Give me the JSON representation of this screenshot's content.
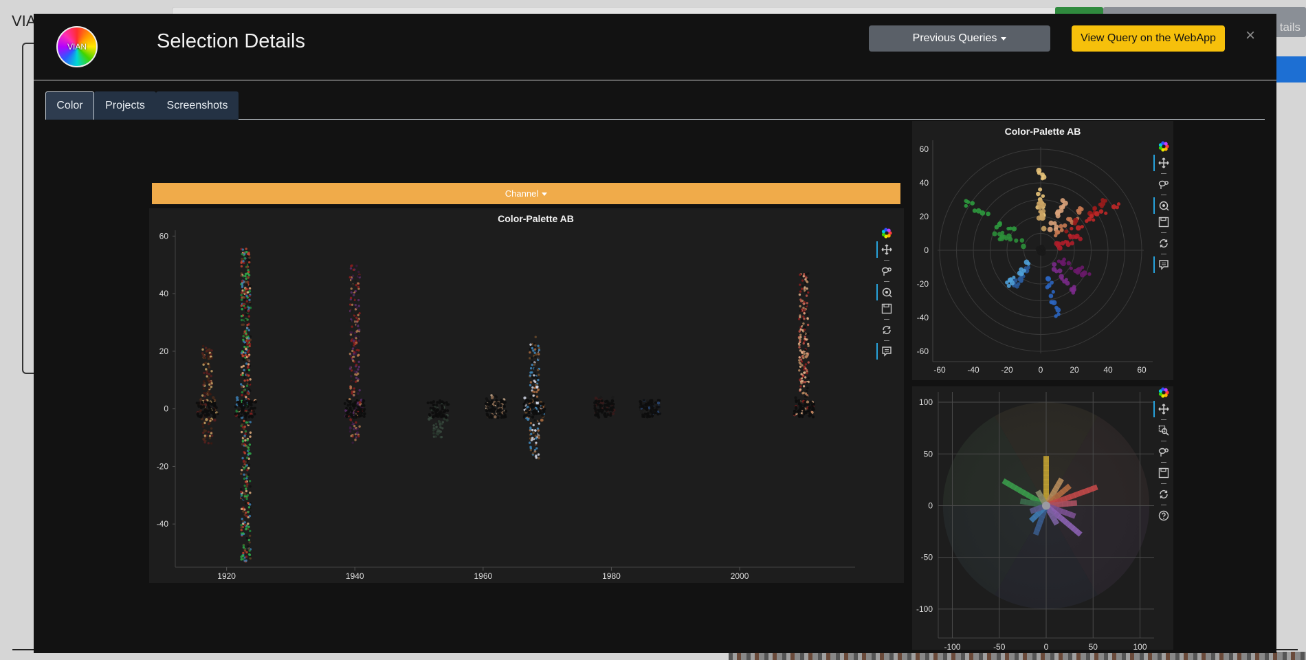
{
  "background": {
    "brand": "VIA",
    "header_button_tail": "tails"
  },
  "modal": {
    "title": "Selection Details",
    "logo_text": "VIAN",
    "buttons": {
      "previous_queries": "Previous Queries",
      "view_query": "View Query on the WebApp",
      "close": "×"
    },
    "tabs": [
      {
        "label": "Color",
        "active": true
      },
      {
        "label": "Projects",
        "active": false
      },
      {
        "label": "Screenshots",
        "active": false
      }
    ],
    "channel_label": "Channel"
  },
  "chart_data": [
    {
      "type": "scatter",
      "title": "Color-Palette AB",
      "x_ticks": [
        "1920",
        "1940",
        "1960",
        "1980",
        "2000"
      ],
      "y_ticks": [
        "60",
        "40",
        "20",
        "0",
        "-20",
        "-40"
      ],
      "xlim": [
        1912,
        2018
      ],
      "ylim": [
        -55,
        62
      ],
      "groups": [
        {
          "year": 1917,
          "min": -12,
          "max": 22,
          "colors": [
            "#5a1e1e",
            "#3e1a12",
            "#4a2a1a",
            "#c5a063"
          ]
        },
        {
          "year": 1923,
          "min": -53,
          "max": 56,
          "colors": [
            "#8b1d1d",
            "#c2452f",
            "#e6b080",
            "#3b7fb5",
            "#1f8a3a",
            "#2fae4a",
            "#5a3a22",
            "#111111"
          ]
        },
        {
          "year": 1940,
          "min": -12,
          "max": 50,
          "colors": [
            "#8b1d1d",
            "#5b2d6a",
            "#3a1a40",
            "#b07a50",
            "#1a1a1a"
          ]
        },
        {
          "year": 1953,
          "min": -10,
          "max": 2,
          "colors": [
            "#2a3a2f",
            "#3a4a3f"
          ]
        },
        {
          "year": 1962,
          "min": -3,
          "max": 5,
          "colors": [
            "#c9ab8e",
            "#8b6a50",
            "#111111"
          ]
        },
        {
          "year": 1968,
          "min": -18,
          "max": 25,
          "colors": [
            "#a86a40",
            "#d4d8e8",
            "#6b4a2a",
            "#111111",
            "#3f89c0"
          ]
        },
        {
          "year": 1979,
          "min": -2,
          "max": 4,
          "colors": [
            "#1a1a1a",
            "#3a1a1a"
          ]
        },
        {
          "year": 1986,
          "min": -2,
          "max": 3,
          "colors": [
            "#2a4a7a",
            "#1a1a1a"
          ]
        },
        {
          "year": 2010,
          "min": -2,
          "max": 47,
          "colors": [
            "#8b1d1d",
            "#c0574a",
            "#e6b28a",
            "#b98860",
            "#111111"
          ]
        }
      ],
      "x_values": [
        1917,
        1923,
        1940,
        1953,
        1962,
        1968,
        1979,
        1986,
        2010
      ]
    },
    {
      "type": "scatter",
      "title": "Color-Palette AB",
      "x_ticks": [
        "-60",
        "-40",
        "-20",
        "0",
        "20",
        "40",
        "60"
      ],
      "y_ticks": [
        "60",
        "40",
        "20",
        "0",
        "-20",
        "-40",
        "-60"
      ],
      "xlim": [
        -66,
        66
      ],
      "ylim": [
        -66,
        66
      ],
      "clusters": [
        {
          "a": -48,
          "b": 30,
          "color": "#2e9a3e"
        },
        {
          "a": -28,
          "b": 10,
          "color": "#2c8f3a"
        },
        {
          "a": 0,
          "b": 48,
          "color": "#e9c47a"
        },
        {
          "a": 0,
          "b": 30,
          "color": "#c9a263"
        },
        {
          "a": 15,
          "b": 30,
          "color": "#d9a27a"
        },
        {
          "a": 25,
          "b": 25,
          "color": "#c97a52"
        },
        {
          "a": 40,
          "b": 30,
          "color": "#9a1c1c"
        },
        {
          "a": 50,
          "b": 30,
          "color": "#c02828"
        },
        {
          "a": 25,
          "b": 8,
          "color": "#b01e2a"
        },
        {
          "a": 30,
          "b": -15,
          "color": "#6a1a6a"
        },
        {
          "a": 20,
          "b": -25,
          "color": "#7a2a8a"
        },
        {
          "a": -15,
          "b": -20,
          "color": "#2a5a9a"
        },
        {
          "a": -20,
          "b": -22,
          "color": "#4fa0d8"
        },
        {
          "a": 10,
          "b": -40,
          "color": "#2b65c0"
        },
        {
          "a": 0,
          "b": 0,
          "color": "#1a1a1a"
        }
      ]
    },
    {
      "type": "scatter",
      "x_ticks": [
        "-100",
        "-50",
        "0",
        "50",
        "100"
      ],
      "y_ticks": [
        "100",
        "50",
        "0",
        "-50",
        "-100"
      ],
      "xlim": [
        -115,
        115
      ],
      "ylim": [
        -128,
        110
      ],
      "bars": [
        {
          "angle": 90,
          "len": 48,
          "color": "#c0a032"
        },
        {
          "angle": 60,
          "len": 28,
          "color": "#b48a5a"
        },
        {
          "angle": 40,
          "len": 30,
          "color": "#b06a40"
        },
        {
          "angle": 20,
          "len": 55,
          "color": "#c04848"
        },
        {
          "angle": 5,
          "len": 30,
          "color": "#a85060"
        },
        {
          "angle": -20,
          "len": 30,
          "color": "#7a5090"
        },
        {
          "angle": -40,
          "len": 45,
          "color": "#8a60b0"
        },
        {
          "angle": -60,
          "len": 20,
          "color": "#7a60a0"
        },
        {
          "angle": -110,
          "len": 30,
          "color": "#3a5a8a"
        },
        {
          "angle": -135,
          "len": 20,
          "color": "#3f7ab0"
        },
        {
          "angle": 150,
          "len": 50,
          "color": "#3a9a4a"
        },
        {
          "angle": 170,
          "len": 25,
          "color": "#3a6a4a"
        },
        {
          "angle": 200,
          "len": 15,
          "color": "#5a5a8a"
        },
        {
          "angle": 120,
          "len": 15,
          "color": "#8a8a6a"
        }
      ]
    }
  ]
}
